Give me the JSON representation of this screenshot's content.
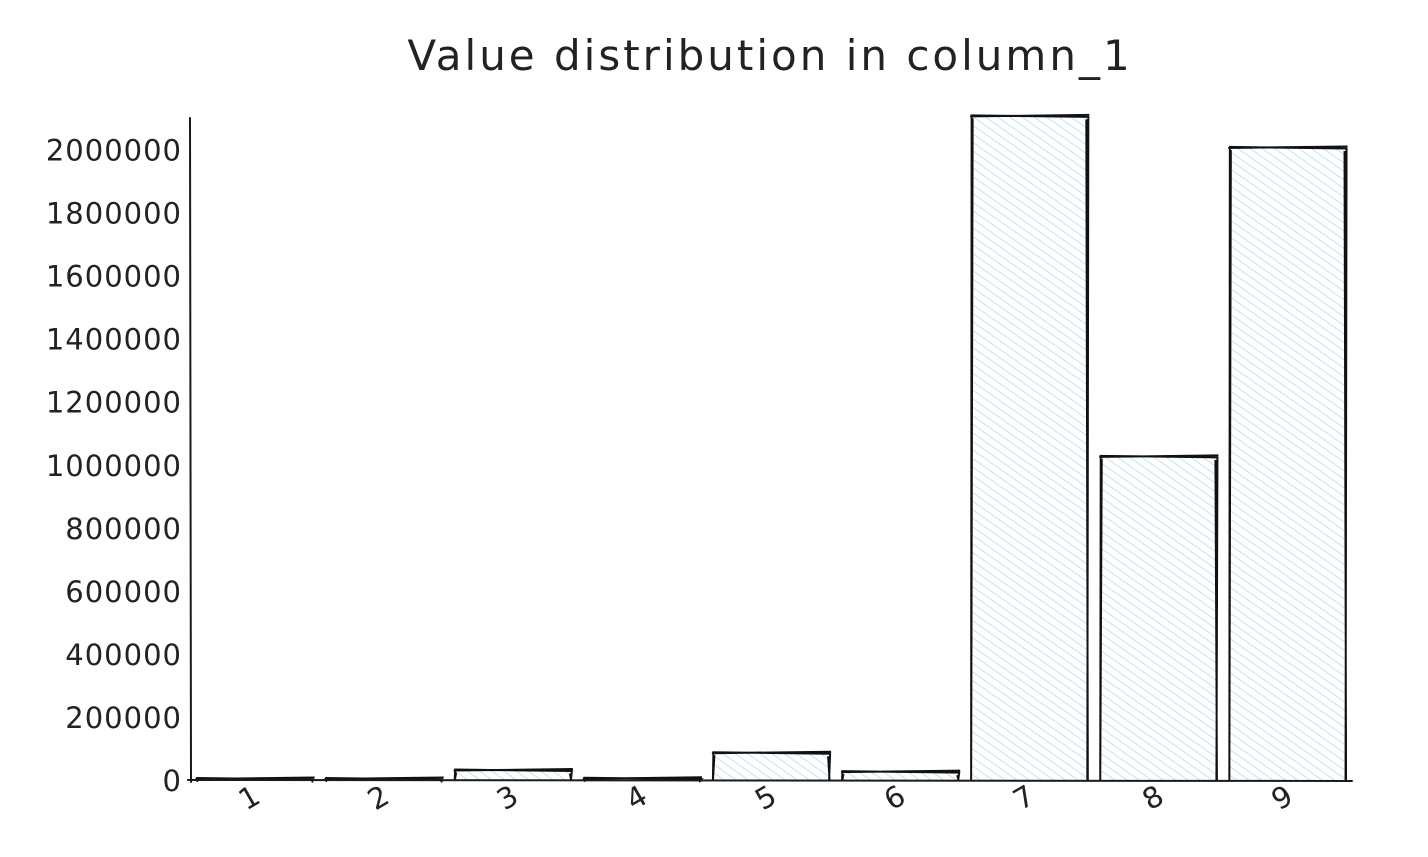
{
  "chart_data": {
    "type": "bar",
    "title": "Value distribution in column_1",
    "xlabel": "",
    "ylabel": "",
    "categories": [
      "1",
      "2",
      "3",
      "4",
      "5",
      "6",
      "7",
      "8",
      "9"
    ],
    "values": [
      2000,
      1000,
      30000,
      4000,
      85000,
      25000,
      2105000,
      1025000,
      2005000
    ],
    "ylim": [
      0,
      2100000
    ],
    "yticks": [
      "0",
      "200000",
      "400000",
      "600000",
      "800000",
      "1000000",
      "1200000",
      "1400000",
      "1600000",
      "1800000",
      "2000000"
    ],
    "grid": false,
    "legend": "none",
    "style": "hand-drawn sketch with diagonal hatch fill",
    "colors": {
      "bar_fill": "#9fd6ee",
      "bar_stroke": "#111111",
      "axis": "#1a1a1a",
      "text": "#222222"
    }
  }
}
